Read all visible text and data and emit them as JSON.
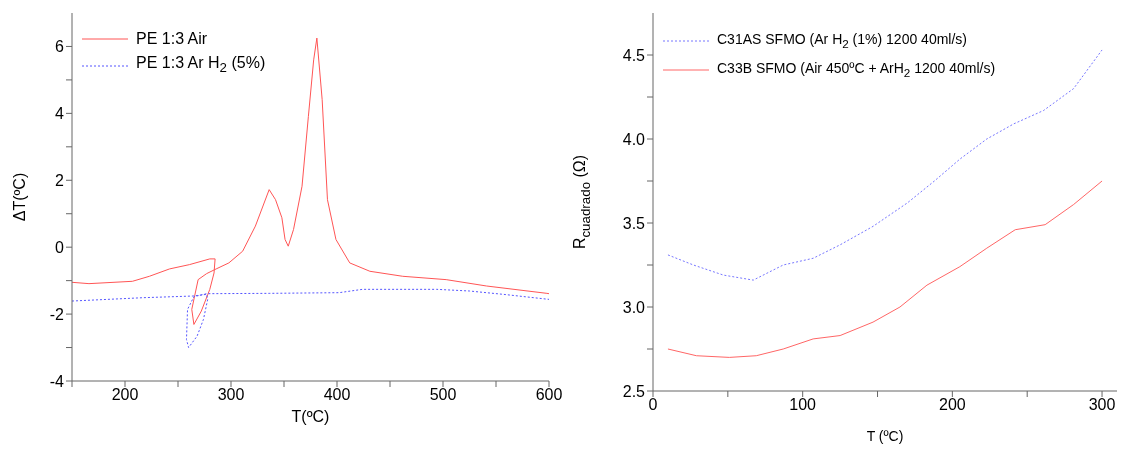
{
  "chart_data": [
    {
      "type": "line",
      "xlabel": "T(ºC)",
      "ylabel": "ΔT(ºC)",
      "xlim": [
        150,
        600
      ],
      "xticks": [
        {
          "value": 150,
          "label": null
        },
        200,
        {
          "value": 250,
          "label": null
        },
        300,
        {
          "value": 350,
          "label": null
        },
        400,
        {
          "value": 450,
          "label": null
        },
        500,
        {
          "value": 550,
          "label": null
        },
        600
      ],
      "ylim": [
        -4,
        7
      ],
      "yticks": [
        -4,
        {
          "value": -3,
          "label": null
        },
        -2,
        {
          "value": -1,
          "label": null
        },
        0,
        {
          "value": 1,
          "label": null
        },
        2,
        {
          "value": 3,
          "label": null
        },
        4,
        {
          "value": 5,
          "label": null
        },
        6
      ],
      "legend": "top left",
      "marker": "none",
      "series": [
        {
          "name": "PE 1:3 Air",
          "color": "#ff5555",
          "line_style": "solid",
          "x": [
            150,
            166,
            207,
            223,
            242,
            261,
            280,
            285,
            284,
            280,
            272,
            265,
            263,
            269,
            277,
            286,
            298,
            311,
            323,
            336,
            342,
            348,
            351,
            354,
            359,
            367,
            373,
            378,
            381,
            386,
            391,
            399,
            412,
            431,
            462,
            503,
            541,
            598,
            600
          ],
          "values": [
            -1.05,
            -1.09,
            -1.02,
            -0.87,
            -0.65,
            -0.52,
            -0.35,
            -0.35,
            -0.77,
            -1.26,
            -1.91,
            -2.31,
            -1.86,
            -0.97,
            -0.79,
            -0.65,
            -0.47,
            -0.12,
            0.63,
            1.72,
            1.42,
            0.88,
            0.23,
            0.03,
            0.53,
            1.82,
            3.91,
            5.6,
            6.25,
            4.41,
            1.42,
            0.23,
            -0.47,
            -0.72,
            -0.87,
            -0.97,
            -1.16,
            -1.38,
            -1.39
          ]
        },
        {
          "name": "PE 1:3 Ar H$_{2}$ (5%)",
          "color": "#5555ff",
          "line_style": "dotted",
          "x": [
            150,
            217,
            264,
            277,
            278,
            274,
            268,
            260,
            258,
            259,
            265,
            277,
            336,
            402,
            424,
            494,
            525,
            557,
            600
          ],
          "values": [
            -1.61,
            -1.51,
            -1.46,
            -1.41,
            -1.56,
            -2.16,
            -2.66,
            -3.0,
            -2.76,
            -1.86,
            -1.48,
            -1.39,
            -1.38,
            -1.36,
            -1.26,
            -1.26,
            -1.31,
            -1.41,
            -1.56
          ]
        }
      ]
    },
    {
      "type": "line",
      "xlabel": "T (ºC)",
      "ylabel": "R$_{cuadrado}$  (Ω)",
      "xlim": [
        0,
        310
      ],
      "xticks": [
        0,
        {
          "value": 50,
          "label": null
        },
        100,
        {
          "value": 150,
          "label": null
        },
        200,
        {
          "value": 250,
          "label": null
        },
        300
      ],
      "ylim": [
        2.5,
        4.75
      ],
      "yticks": [
        2.5,
        {
          "value": 2.75,
          "label": null
        },
        {
          "value": 3,
          "label": "3.0"
        },
        {
          "value": 3.25,
          "label": null
        },
        3.5,
        {
          "value": 3.75,
          "label": null
        },
        {
          "value": 4,
          "label": "4.0"
        },
        {
          "value": 4.25,
          "label": null
        },
        4.5
      ],
      "legend": "top left",
      "marker": "none",
      "series": [
        {
          "name": "C31AS SFMO (Ar H$_{2}$ (1%) 1200 40ml/s)",
          "color": "#7777ff",
          "line_style": "dotted",
          "x": [
            10,
            27,
            47,
            67,
            87,
            107,
            125,
            147,
            170,
            188,
            205,
            223,
            241,
            261,
            281,
            300
          ],
          "values": [
            3.31,
            3.25,
            3.19,
            3.16,
            3.25,
            3.29,
            3.37,
            3.48,
            3.62,
            3.75,
            3.88,
            4.0,
            4.09,
            4.17,
            4.3,
            4.53
          ]
        },
        {
          "name": "C33B SFMO (Air 450ºC + ArH$_{2}$ 1200 40ml/s)",
          "color": "#ff6666",
          "line_style": "solid",
          "x": [
            10,
            29,
            51,
            69,
            87,
            107,
            125,
            147,
            165,
            183,
            205,
            223,
            242,
            262,
            281,
            300
          ],
          "values": [
            2.75,
            2.71,
            2.7,
            2.71,
            2.75,
            2.81,
            2.83,
            2.91,
            3.0,
            3.13,
            3.24,
            3.35,
            3.46,
            3.49,
            3.61,
            3.75
          ]
        }
      ]
    }
  ]
}
